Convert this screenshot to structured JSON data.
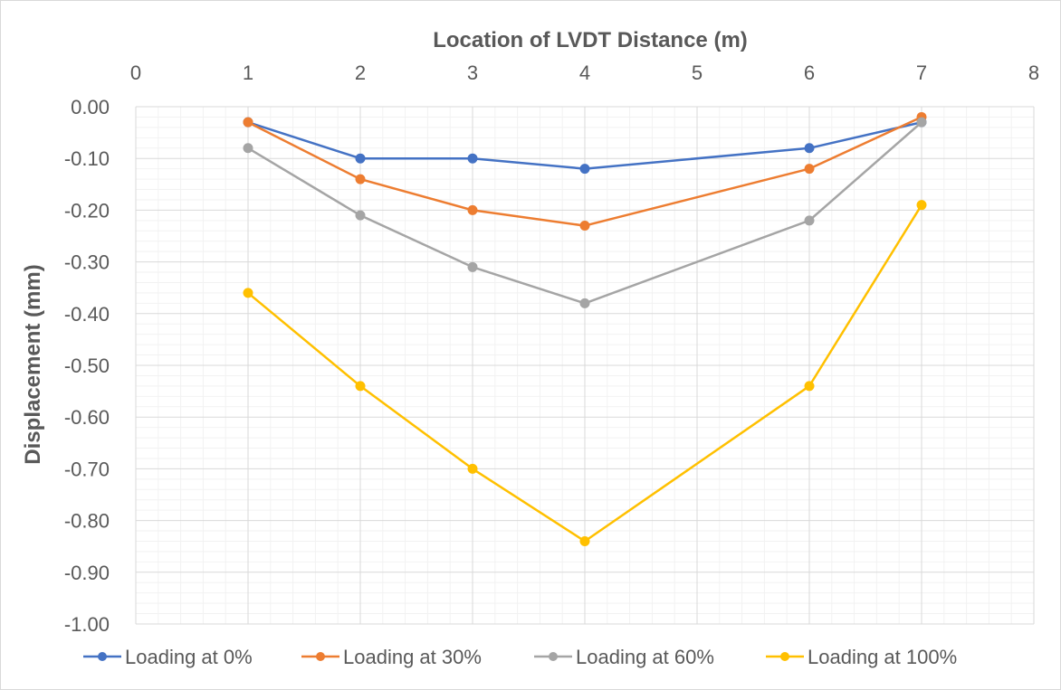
{
  "chart_data": {
    "type": "line",
    "title": "",
    "xlabel": "Location of LVDT Distance (m)",
    "ylabel": "Displacement (mm)",
    "xlim": [
      0,
      8
    ],
    "ylim": [
      -1.0,
      0.0
    ],
    "x_ticks": [
      "0",
      "1",
      "2",
      "3",
      "4",
      "5",
      "6",
      "7",
      "8"
    ],
    "y_ticks": [
      "0.00",
      "-0.10",
      "-0.20",
      "-0.30",
      "-0.40",
      "-0.50",
      "-0.60",
      "-0.70",
      "-0.80",
      "-0.90",
      "-1.00"
    ],
    "x_axis_position": "top",
    "grid": true,
    "legend_position": "bottom",
    "x": [
      1,
      2,
      3,
      4,
      6,
      7
    ],
    "series": [
      {
        "name": "Loading at 0%",
        "color": "#4472C4",
        "values": [
          -0.03,
          -0.1,
          -0.1,
          -0.12,
          -0.08,
          -0.03
        ]
      },
      {
        "name": "Loading at 30%",
        "color": "#ED7D31",
        "values": [
          -0.03,
          -0.14,
          -0.2,
          -0.23,
          -0.12,
          -0.02
        ]
      },
      {
        "name": "Loading at 60%",
        "color": "#A5A5A5",
        "values": [
          -0.08,
          -0.21,
          -0.31,
          -0.38,
          -0.22,
          -0.03
        ]
      },
      {
        "name": "Loading at 100%",
        "color": "#FFC000",
        "values": [
          -0.36,
          -0.54,
          -0.7,
          -0.84,
          -0.54,
          -0.19
        ]
      }
    ]
  }
}
